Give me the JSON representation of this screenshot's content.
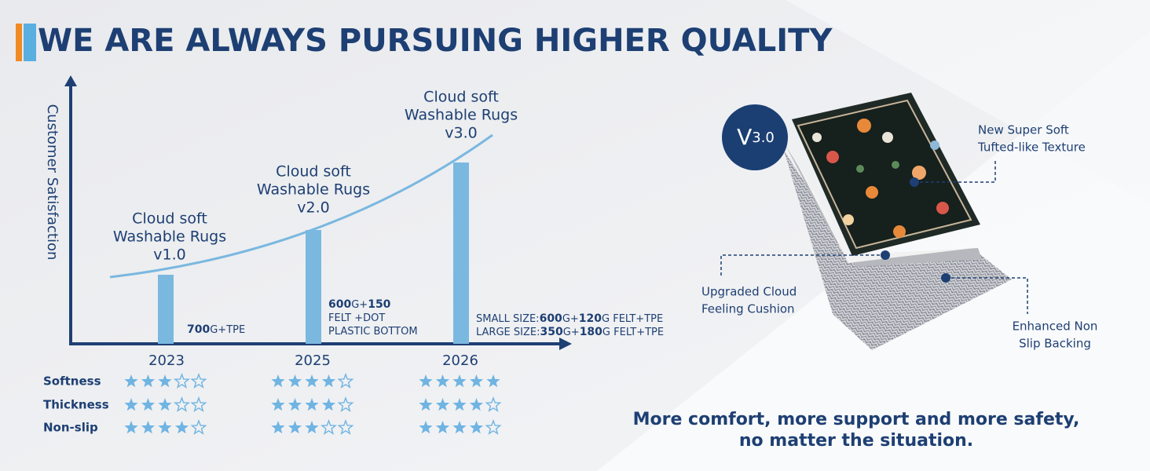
{
  "header": {
    "title": "WE ARE ALWAYS PURSUING HIGHER QUALITY"
  },
  "chart": {
    "y_axis_label": "Customer Satisfaction",
    "products": [
      {
        "year": "2023",
        "name_lines": [
          "Cloud soft",
          "Washable Rugs",
          "v1.0"
        ],
        "spec_lines": [
          [
            {
              "text": "700",
              "bold": true
            },
            {
              "text": "G+TPE"
            }
          ]
        ]
      },
      {
        "year": "2025",
        "name_lines": [
          "Cloud soft",
          "Washable Rugs",
          "v2.0"
        ],
        "spec_lines": [
          [
            {
              "text": "600",
              "bold": true
            },
            {
              "text": "G+"
            },
            {
              "text": "150",
              "bold": true
            }
          ],
          [
            {
              "text": "FELT +DOT"
            }
          ],
          [
            {
              "text": "PLASTIC BOTTOM"
            }
          ]
        ]
      },
      {
        "year": "2026",
        "name_lines": [
          "Cloud soft",
          "Washable Rugs",
          "v3.0"
        ],
        "spec_lines": [
          [
            {
              "text": "SMALL SIZE:"
            },
            {
              "text": "600",
              "bold": true
            },
            {
              "text": "G+"
            },
            {
              "text": "120",
              "bold": true
            },
            {
              "text": "G FELT+TPE"
            }
          ],
          [
            {
              "text": "LARGE  SIZE:"
            },
            {
              "text": "350",
              "bold": true
            },
            {
              "text": "G+"
            },
            {
              "text": "180",
              "bold": true
            },
            {
              "text": "G FELT+TPE"
            }
          ]
        ]
      }
    ]
  },
  "ratings": {
    "scale": 5,
    "rows": [
      {
        "label": "Softness",
        "values": [
          3,
          4,
          5
        ]
      },
      {
        "label": "Thickness",
        "values": [
          3,
          4,
          4
        ]
      },
      {
        "label": "Non-slip",
        "values": [
          4,
          3,
          4
        ]
      }
    ]
  },
  "badge": {
    "letter": "V",
    "version": "3.0"
  },
  "callouts": [
    {
      "lines": [
        "New Super Soft",
        "Tufted-like Texture"
      ]
    },
    {
      "lines": [
        "Upgraded Cloud",
        "Feeling Cushion"
      ]
    },
    {
      "lines": [
        "Enhanced Non",
        "Slip Backing"
      ]
    }
  ],
  "tagline": [
    "More comfort, more support and more safety,",
    "no matter the situation."
  ]
}
